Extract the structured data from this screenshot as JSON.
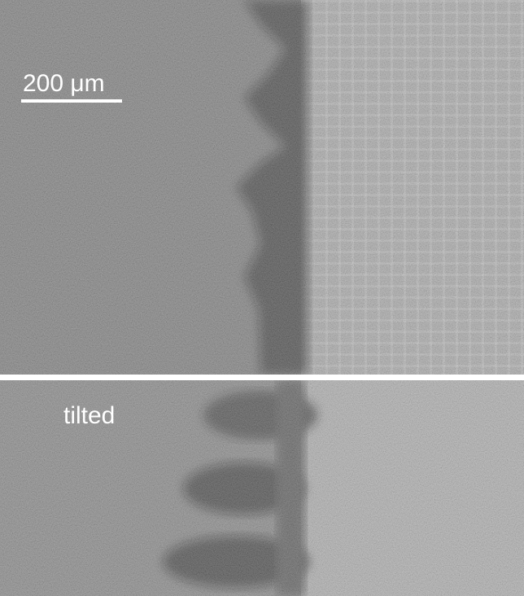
{
  "panels": [
    {
      "label": "200 μm"
    },
    {
      "label": "tilted"
    }
  ]
}
